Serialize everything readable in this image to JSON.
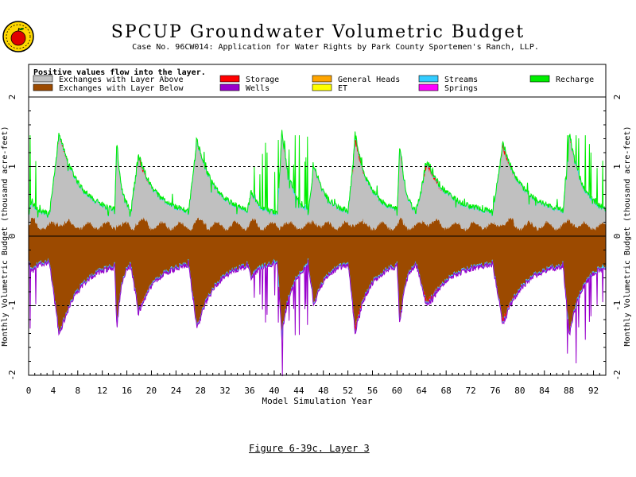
{
  "header": {
    "title": "SPCUP Groundwater Volumetric Budget",
    "subtitle": "Case No. 96CW014: Application for Water Rights by Park County Sportemen's Ranch, LLP."
  },
  "caption": "Figure 6-39c.   Layer 3",
  "colors": {
    "exchanges_above": "#c0c0c0",
    "exchanges_below": "#9c4a00",
    "storage": "#ff0000",
    "wells": "#9900cc",
    "general_heads": "#ffa500",
    "et": "#ffff00",
    "streams": "#33ccff",
    "springs": "#ff00ff",
    "recharge": "#00ee00"
  },
  "chart_data": {
    "type": "area",
    "title": "SPCUP Groundwater Volumetric Budget",
    "subtitle": "Case No. 96CW014: Application for Water Rights by Park County Sportemen's Ranch, LLP.",
    "xlabel": "Model Simulation Year",
    "ylabel": "Monthly Volumetric Budget (thousand acre-feet)",
    "xlim": [
      0,
      94
    ],
    "ylim": [
      -2,
      2
    ],
    "xticks": [
      0,
      4,
      8,
      12,
      16,
      20,
      24,
      28,
      32,
      36,
      40,
      44,
      48,
      52,
      56,
      60,
      64,
      68,
      72,
      76,
      80,
      84,
      88,
      92
    ],
    "yticks": [
      -2,
      -1,
      0,
      1,
      2
    ],
    "reference_lines": [
      -1,
      1
    ],
    "legend_note": "Positive values flow into the layer.",
    "legend": [
      "Exchanges with Layer Above",
      "Exchanges with Layer Below",
      "Storage",
      "Wells",
      "General Heads",
      "ET",
      "Streams",
      "Springs",
      "Recharge"
    ],
    "legend_placement": "top (inside plot area)",
    "cycles": [
      {
        "start": 0,
        "end": 3.4,
        "peak": 0.5,
        "storage_peak": 0.0,
        "recharge_spikes": true
      },
      {
        "start": 3.4,
        "end": 14.0,
        "peak": 1.45,
        "storage_peak": 0.05,
        "recharge_spikes": false
      },
      {
        "start": 14.0,
        "end": 16.5,
        "peak": 1.35,
        "storage_peak": 0.08,
        "recharge_spikes": false
      },
      {
        "start": 16.5,
        "end": 26.0,
        "peak": 1.1,
        "storage_peak": 0.12,
        "recharge_spikes": false
      },
      {
        "start": 26.0,
        "end": 35.5,
        "peak": 1.35,
        "storage_peak": 0.03,
        "recharge_spikes": false
      },
      {
        "start": 35.5,
        "end": 40.5,
        "peak": 0.6,
        "storage_peak": 0.02,
        "recharge_spikes": true
      },
      {
        "start": 40.5,
        "end": 45.5,
        "peak": 1.45,
        "storage_peak": 0.1,
        "recharge_spikes": true
      },
      {
        "start": 45.5,
        "end": 52.0,
        "peak": 1.0,
        "storage_peak": 0.03,
        "recharge_spikes": false
      },
      {
        "start": 52.0,
        "end": 60.0,
        "peak": 1.35,
        "storage_peak": 0.18,
        "recharge_spikes": false
      },
      {
        "start": 60.0,
        "end": 63.0,
        "peak": 1.3,
        "storage_peak": 0.18,
        "recharge_spikes": false
      },
      {
        "start": 63.0,
        "end": 75.5,
        "peak": 1.0,
        "storage_peak": 0.15,
        "recharge_spikes": false
      },
      {
        "start": 75.5,
        "end": 87.0,
        "peak": 1.25,
        "storage_peak": 0.12,
        "recharge_spikes": false
      },
      {
        "start": 87.0,
        "end": 94.0,
        "peak": 1.45,
        "storage_peak": 0.05,
        "recharge_spikes": true
      }
    ],
    "series": [
      {
        "name": "Exchanges with Layer Above",
        "range": [
          -0.5,
          1.4
        ]
      },
      {
        "name": "Exchanges with Layer Below",
        "range": [
          -1.4,
          0.35
        ]
      },
      {
        "name": "Storage",
        "range": [
          -0.2,
          0.2
        ]
      },
      {
        "name": "Wells",
        "range": [
          -0.05,
          0
        ]
      },
      {
        "name": "Streams",
        "range": [
          -0.03,
          0.03
        ]
      },
      {
        "name": "Recharge",
        "range": [
          0,
          1.4
        ]
      }
    ]
  },
  "legend_items": [
    {
      "label": "Exchanges with Layer Above",
      "key": "exchanges_above"
    },
    {
      "label": "Exchanges with Layer Below",
      "key": "exchanges_below"
    },
    {
      "label": "Storage",
      "key": "storage"
    },
    {
      "label": "Wells",
      "key": "wells"
    },
    {
      "label": "General Heads",
      "key": "general_heads"
    },
    {
      "label": "ET",
      "key": "et"
    },
    {
      "label": "Streams",
      "key": "streams"
    },
    {
      "label": "Springs",
      "key": "springs"
    },
    {
      "label": "Recharge",
      "key": "recharge"
    }
  ]
}
